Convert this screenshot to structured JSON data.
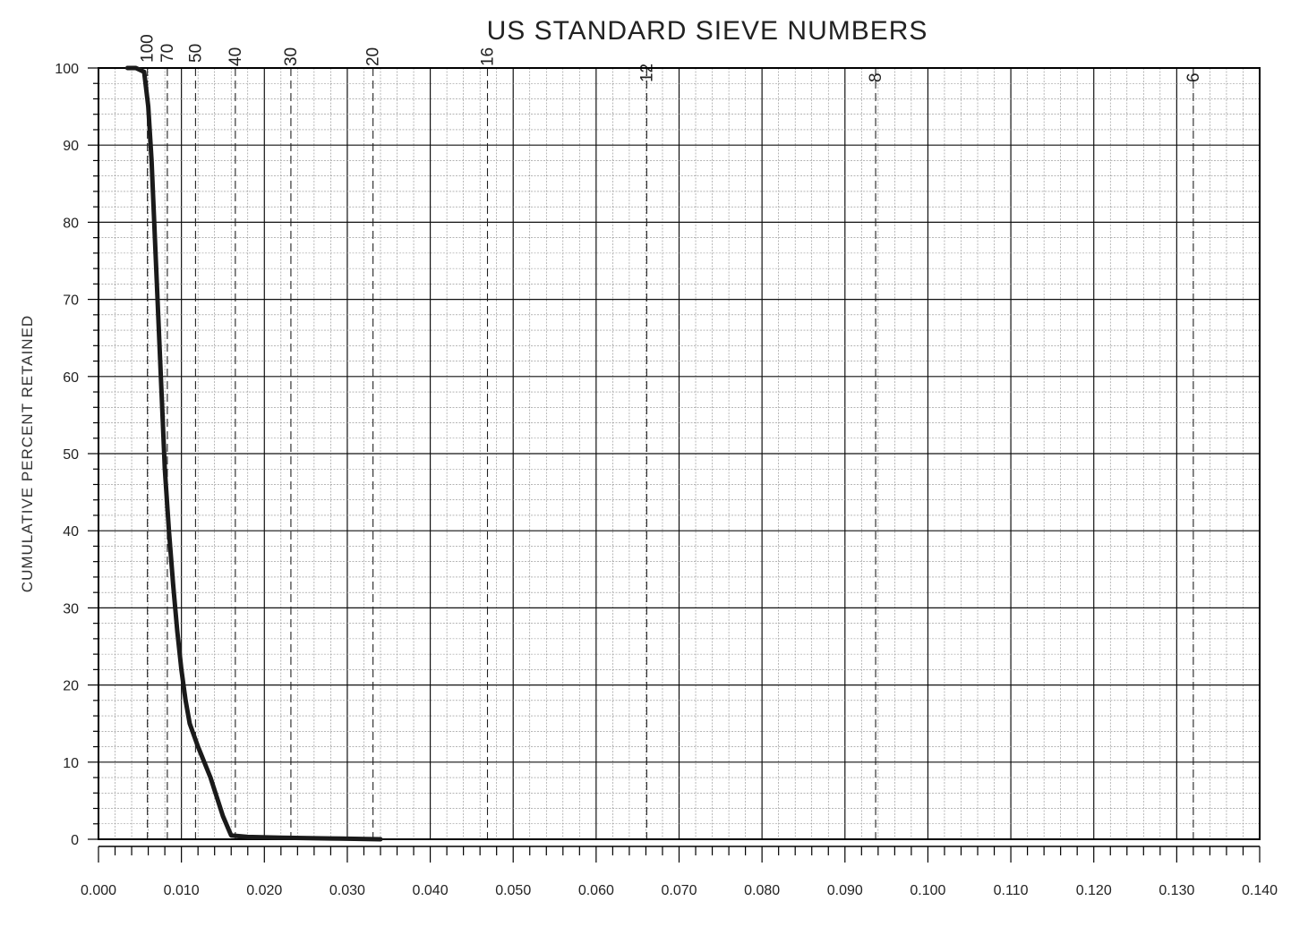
{
  "chart_data": {
    "type": "line",
    "title": "US STANDARD SIEVE NUMBERS",
    "ylabel": "CUMULATIVE PERCENT RETAINED",
    "xlabel": "",
    "xlim": [
      0.0,
      0.14
    ],
    "ylim": [
      0,
      100
    ],
    "x_ticks": [
      "0.000",
      "0.010",
      "0.020",
      "0.030",
      "0.040",
      "0.050",
      "0.060",
      "0.070",
      "0.080",
      "0.090",
      "0.100",
      "0.110",
      "0.120",
      "0.130",
      "0.140"
    ],
    "y_ticks": [
      "0",
      "10",
      "20",
      "30",
      "40",
      "50",
      "60",
      "70",
      "80",
      "90",
      "100"
    ],
    "sieves": [
      {
        "label": "100",
        "x": 0.0059
      },
      {
        "label": "70",
        "x": 0.0083
      },
      {
        "label": "50",
        "x": 0.0117
      },
      {
        "label": "40",
        "x": 0.0165
      },
      {
        "label": "30",
        "x": 0.0232
      },
      {
        "label": "20",
        "x": 0.0331
      },
      {
        "label": "16",
        "x": 0.0469
      },
      {
        "label": "12",
        "x": 0.0661
      },
      {
        "label": "8",
        "x": 0.0937
      },
      {
        "label": "6",
        "x": 0.132
      }
    ],
    "grid": true,
    "series": [
      {
        "x": [
          0.0035,
          0.0045,
          0.0055,
          0.006,
          0.0064,
          0.0068,
          0.0072,
          0.0076,
          0.008,
          0.0085,
          0.009,
          0.0095,
          0.01,
          0.0105,
          0.011,
          0.012,
          0.0135,
          0.015,
          0.016,
          0.018,
          0.022,
          0.028,
          0.034
        ],
        "y": [
          100,
          100,
          99.5,
          95,
          88,
          78,
          68,
          58,
          48,
          40,
          33,
          27,
          22,
          18,
          15,
          12,
          8,
          3,
          0.5,
          0.3,
          0.2,
          0.1,
          0
        ]
      }
    ]
  }
}
